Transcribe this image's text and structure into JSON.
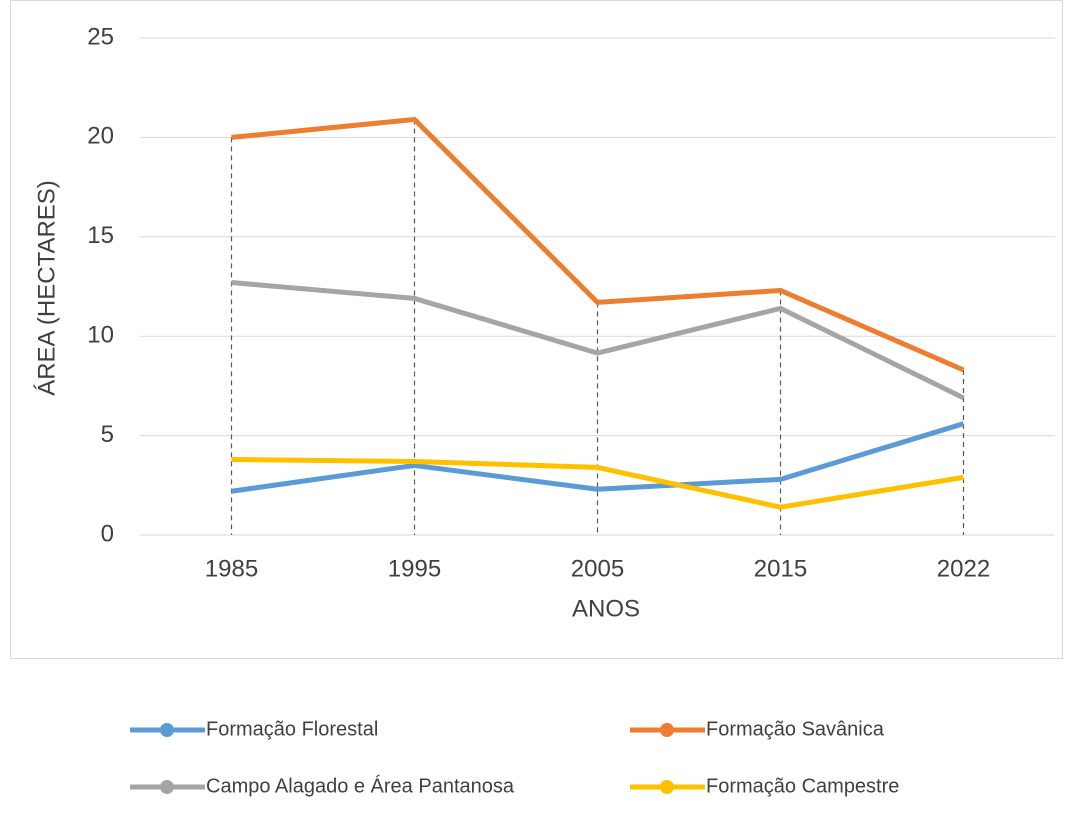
{
  "chart_data": {
    "type": "line",
    "x_label": "ANOS",
    "y_label": "ÁREA  (HECTARES)",
    "categories": [
      "1985",
      "1995",
      "2005",
      "2015",
      "2022"
    ],
    "series": [
      {
        "name": "Formação Florestal",
        "color": "#5b9bd5",
        "values": [
          2.2,
          3.5,
          2.3,
          2.8,
          5.6
        ]
      },
      {
        "name": "Formação Savânica",
        "color": "#ed7d31",
        "values": [
          20.0,
          20.9,
          11.7,
          12.3,
          8.3
        ]
      },
      {
        "name": "Campo Alagado e Área Pantanosa",
        "color": "#a5a5a5",
        "values": [
          12.7,
          11.9,
          9.15,
          11.4,
          6.9
        ]
      },
      {
        "name": "Formação Campestre",
        "color": "#ffc000",
        "values": [
          3.8,
          3.7,
          3.4,
          1.4,
          2.9
        ]
      }
    ],
    "ylim": [
      0,
      25
    ],
    "yticks": [
      0,
      5,
      10,
      15,
      20,
      25
    ],
    "grid": true,
    "drop_lines": true,
    "legend": "bottom"
  }
}
